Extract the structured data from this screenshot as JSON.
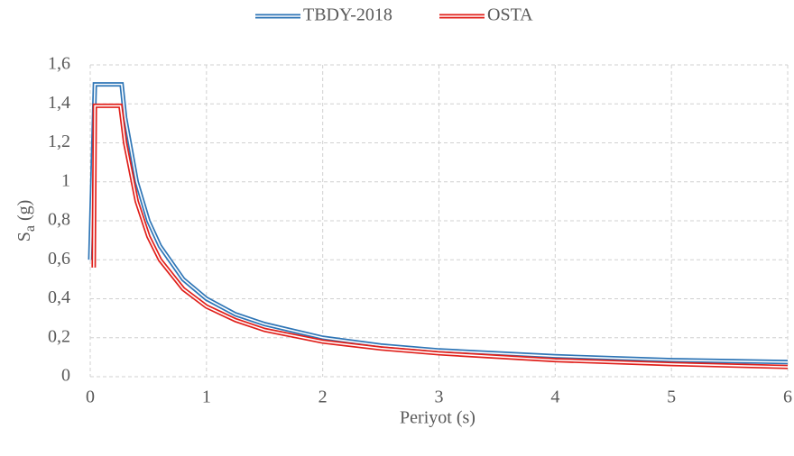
{
  "chart_data": {
    "type": "line",
    "xlabel": "Periyot (s)",
    "ylabel": [
      "S",
      "a",
      " (g)"
    ],
    "xlim": [
      0,
      6
    ],
    "xticks": [
      0,
      1,
      2,
      3,
      4,
      5,
      6
    ],
    "ylim": [
      0,
      1.6
    ],
    "yticks": [
      0,
      {
        "value": 0.2,
        "label": "0,2"
      },
      {
        "value": 0.4,
        "label": "0,4"
      },
      {
        "value": 0.6,
        "label": "0,6"
      },
      {
        "value": 0.8,
        "label": "0,8"
      },
      1,
      {
        "value": 1.2,
        "label": "1,2"
      },
      {
        "value": 1.4,
        "label": "1,4"
      },
      {
        "value": 1.6,
        "label": "1,6"
      }
    ],
    "grid": true,
    "legend": "top",
    "series": [
      {
        "name": "TBDY-2018",
        "color": "#2e75b6",
        "x": [
          0,
          0.04,
          0.27,
          0.3,
          0.4,
          0.5,
          0.6,
          0.8,
          1,
          1.25,
          1.5,
          2,
          2.5,
          3,
          4,
          5,
          6
        ],
        "values": [
          0.6,
          1.5,
          1.5,
          1.33,
          1.0,
          0.8,
          0.67,
          0.5,
          0.4,
          0.32,
          0.27,
          0.2,
          0.16,
          0.135,
          0.105,
          0.085,
          0.075
        ]
      },
      {
        "name": "OSTA",
        "color": "#e0201b",
        "x": [
          0.03,
          0.04,
          0.26,
          0.3,
          0.4,
          0.5,
          0.6,
          0.8,
          1,
          1.25,
          1.5,
          2,
          2.5,
          3,
          4,
          5,
          6
        ],
        "values": [
          0.56,
          1.39,
          1.39,
          1.2,
          0.9,
          0.72,
          0.6,
          0.45,
          0.36,
          0.29,
          0.24,
          0.18,
          0.145,
          0.12,
          0.085,
          0.065,
          0.05
        ]
      }
    ]
  }
}
